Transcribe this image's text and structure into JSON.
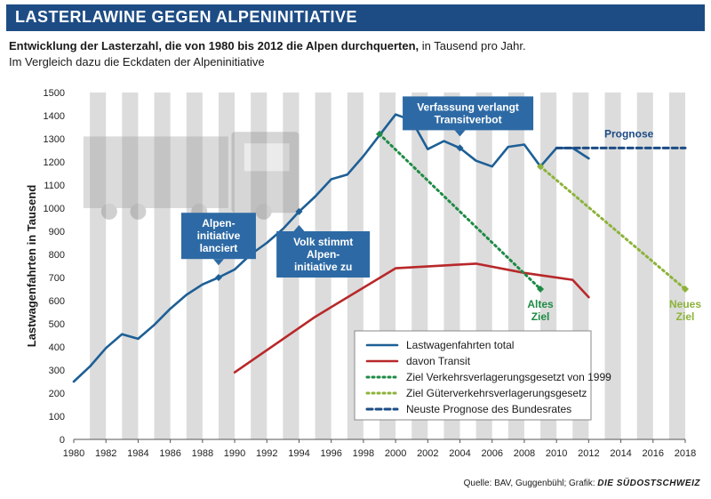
{
  "header": {
    "title": "LASTERLAWINE GEGEN ALPENINITIATIVE"
  },
  "subtitle": {
    "bold": "Entwicklung der Lasterzahl, die von 1980 bis 2012 die Alpen durchquerten,",
    "normal": " in Tausend pro Jahr.",
    "line2": "Im Vergleich dazu die Eckdaten der Alpeninitiative"
  },
  "source": {
    "text": "Quelle: BAV, Guggenbühl; Grafik: ",
    "brand": "DIE SÜDOSTSCHWEIZ"
  },
  "colors": {
    "header": "#1d4c85",
    "total": "#1d5f96",
    "transit": "#b8282a",
    "altes_ziel": "#1e8b45",
    "neues_ziel": "#8db33a",
    "prognose": "#1d4c85",
    "callout": "#2d6aa5",
    "stripe": "#dcdcdc"
  },
  "chart_data": {
    "type": "line",
    "ylabel": "Lastwagenfahrten in Tausend",
    "xlim": [
      1980,
      2018
    ],
    "ylim": [
      0,
      1500
    ],
    "x_ticks": [
      1980,
      1982,
      1984,
      1986,
      1988,
      1990,
      1992,
      1994,
      1996,
      1998,
      2000,
      2002,
      2004,
      2006,
      2008,
      2010,
      2012,
      2014,
      2016,
      2018
    ],
    "y_ticks": [
      0,
      100,
      200,
      300,
      400,
      500,
      600,
      700,
      800,
      900,
      1000,
      1100,
      1200,
      1300,
      1400,
      1500
    ],
    "grid": "vertical stripes per year",
    "legend_position": "bottom-center",
    "series": [
      {
        "name": "Lastwagenfahrten total",
        "key": "total",
        "style": "solid",
        "x": [
          1980,
          1981,
          1982,
          1983,
          1984,
          1985,
          1986,
          1987,
          1988,
          1989,
          1990,
          1991,
          1992,
          1993,
          1994,
          1995,
          1996,
          1997,
          1998,
          1999,
          2000,
          2001,
          2002,
          2003,
          2004,
          2005,
          2006,
          2007,
          2008,
          2009,
          2010,
          2011,
          2012
        ],
        "y": [
          250,
          315,
          395,
          455,
          435,
          495,
          565,
          625,
          670,
          700,
          735,
          800,
          850,
          910,
          985,
          1050,
          1125,
          1145,
          1225,
          1315,
          1405,
          1380,
          1255,
          1290,
          1260,
          1205,
          1180,
          1265,
          1275,
          1180,
          1260,
          1260,
          1215
        ]
      },
      {
        "name": "davon Transit",
        "key": "transit",
        "style": "solid",
        "x": [
          1990,
          1995,
          2000,
          2005,
          2008,
          2011,
          2012
        ],
        "y": [
          290,
          530,
          740,
          760,
          720,
          690,
          615
        ]
      },
      {
        "name": "Ziel Verkehrsverlagerungsgesetzt von 1999",
        "key": "altes_ziel",
        "style": "dotted",
        "x": [
          1999,
          2009
        ],
        "y": [
          1320,
          650
        ]
      },
      {
        "name": "Ziel Güterverkehrsverlagerungsgesetz",
        "key": "neues_ziel",
        "style": "dotted",
        "x": [
          2009,
          2018
        ],
        "y": [
          1180,
          650
        ]
      },
      {
        "name": "Neuste Prognose des Bundesrates",
        "key": "prognose",
        "style": "dashed",
        "x": [
          2010,
          2018
        ],
        "y": [
          1260,
          1260
        ]
      }
    ],
    "markers": [
      {
        "x": 1989,
        "y": 700,
        "series": "total"
      },
      {
        "x": 1994,
        "y": 985,
        "series": "total"
      },
      {
        "x": 2004,
        "y": 1260,
        "series": "total"
      },
      {
        "x": 1999,
        "y": 1320,
        "series": "altes_ziel"
      },
      {
        "x": 2009,
        "y": 650,
        "series": "altes_ziel"
      },
      {
        "x": 2009,
        "y": 1180,
        "series": "neues_ziel"
      },
      {
        "x": 2018,
        "y": 650,
        "series": "neues_ziel"
      }
    ],
    "annotations": [
      {
        "id": "alpeninitiative",
        "lines": [
          "Alpen-",
          "initiative",
          "lanciert"
        ],
        "x": 1989,
        "y": 700,
        "box_x": 1989,
        "box_y": 880,
        "pointer": "down"
      },
      {
        "id": "volk-stimmt",
        "lines": [
          "Volk stimmt",
          "Alpen-",
          "initiative zu"
        ],
        "x": 1994,
        "y": 985,
        "box_x": 1995.5,
        "box_y": 800,
        "pointer": "up"
      },
      {
        "id": "verfassung",
        "lines": [
          "Verfassung verlangt",
          "Transitverbot"
        ],
        "x": 2004,
        "y": 1260,
        "box_x": 2004.5,
        "box_y": 1410,
        "pointer": "down"
      }
    ],
    "labels": [
      {
        "id": "prognose",
        "text": [
          "Prognose"
        ],
        "x": 2014.5,
        "y": 1305,
        "color": "prognose"
      },
      {
        "id": "altes-ziel",
        "text": [
          "Altes",
          "Ziel"
        ],
        "x": 2009,
        "y": 570,
        "color": "altes_ziel"
      },
      {
        "id": "neues-ziel",
        "text": [
          "Neues",
          "Ziel"
        ],
        "x": 2018,
        "y": 570,
        "color": "neues_ziel"
      }
    ]
  }
}
